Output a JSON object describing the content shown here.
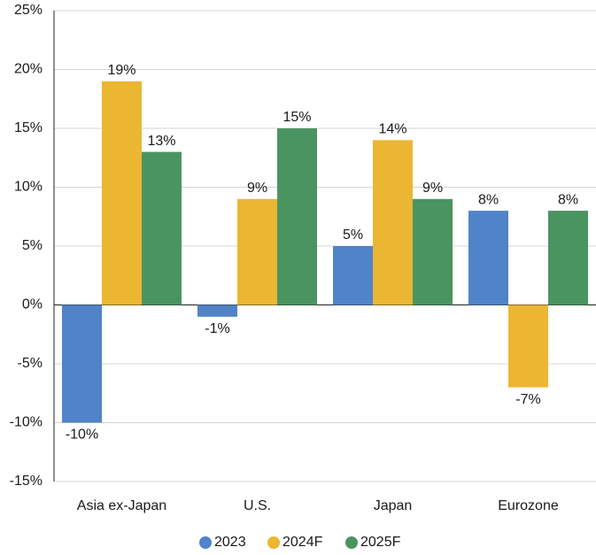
{
  "chart_data": {
    "type": "bar",
    "categories": [
      "Asia ex-Japan",
      "U.S.",
      "Japan",
      "Eurozone"
    ],
    "series": [
      {
        "name": "2023",
        "color": "#5083c7",
        "values": [
          -10,
          -1,
          5,
          8
        ],
        "value_labels": [
          "-10%",
          "-1%",
          "5%",
          "8%"
        ]
      },
      {
        "name": "2024F",
        "color": "#ebb632",
        "values": [
          19,
          9,
          14,
          -7
        ],
        "value_labels": [
          "19%",
          "9%",
          "14%",
          "-7%"
        ]
      },
      {
        "name": "2025F",
        "color": "#4a9461",
        "values": [
          13,
          15,
          9,
          8
        ],
        "value_labels": [
          "13%",
          "15%",
          "9%",
          "8%"
        ]
      }
    ],
    "ylim": [
      -15,
      25
    ],
    "yticks": [
      {
        "value": -15,
        "label": "-15%"
      },
      {
        "value": -10,
        "label": "-10%"
      },
      {
        "value": -5,
        "label": "-5%"
      },
      {
        "value": 0,
        "label": "0%"
      },
      {
        "value": 5,
        "label": "5%"
      },
      {
        "value": 10,
        "label": "10%"
      },
      {
        "value": 15,
        "label": "15%"
      },
      {
        "value": 20,
        "label": "20%"
      },
      {
        "value": 25,
        "label": "25%"
      }
    ],
    "grid": true
  }
}
